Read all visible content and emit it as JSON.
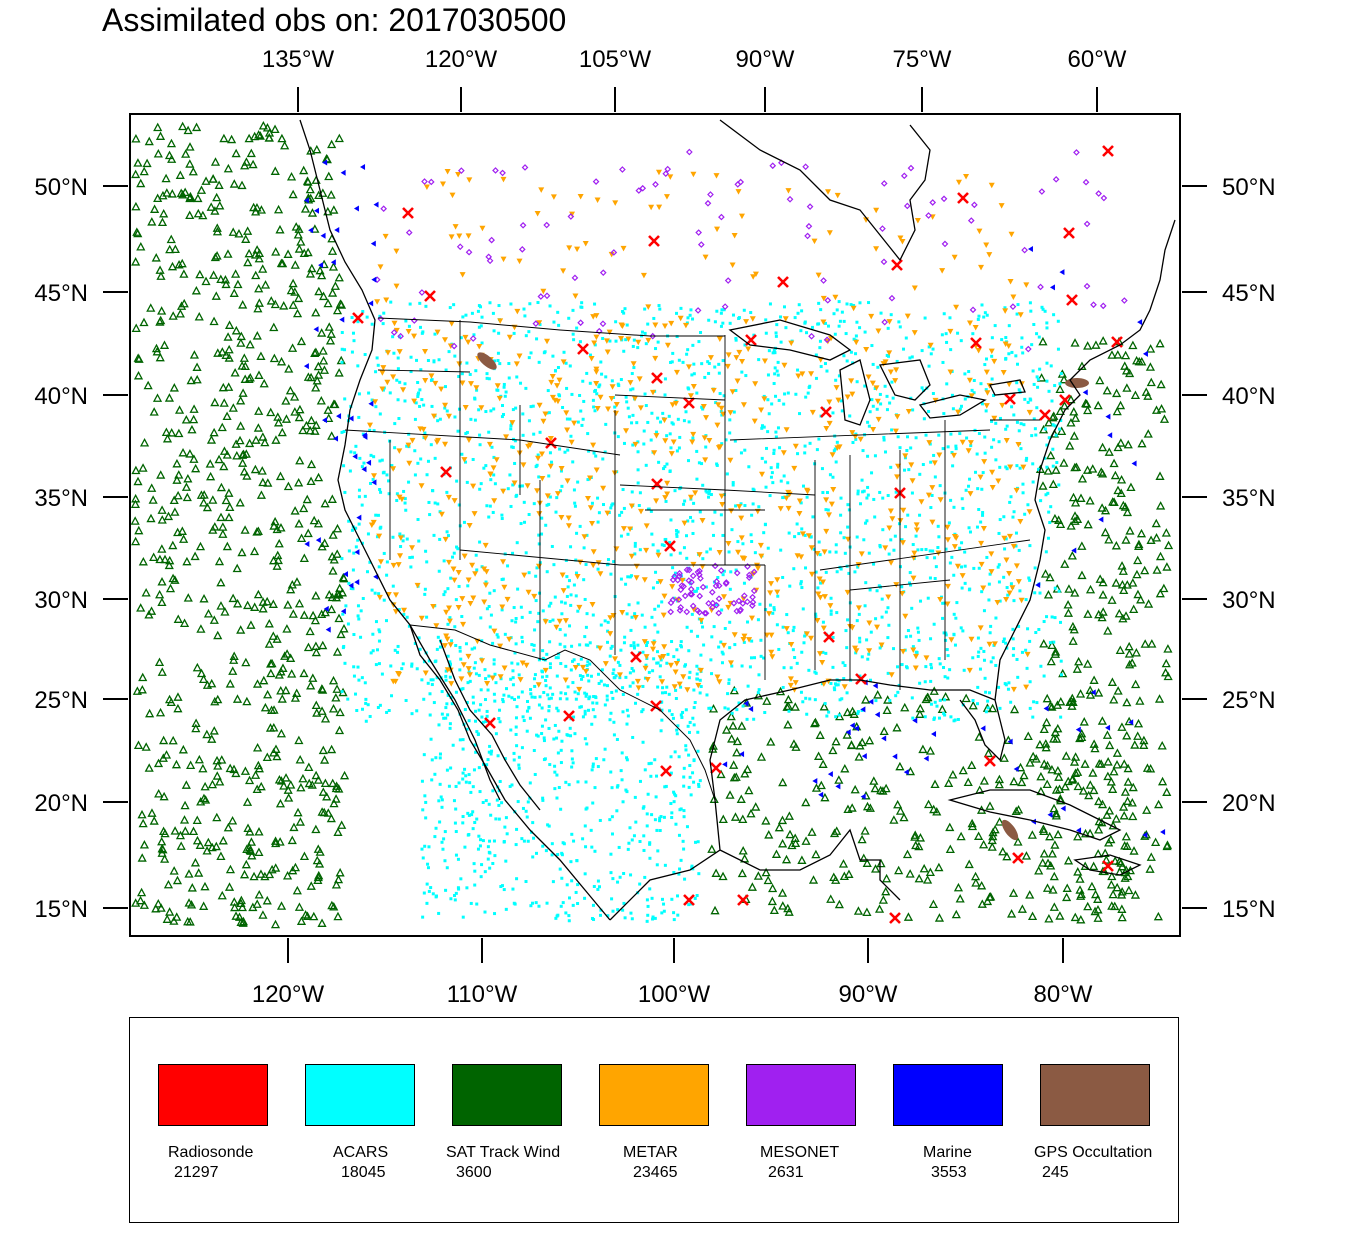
{
  "title": "Assimilated obs on: 2017030500",
  "axes": {
    "top_lon_labels": [
      "135°W",
      "120°W",
      "105°W",
      "90°W",
      "75°W",
      "60°W"
    ],
    "bottom_lon_labels": [
      "120°W",
      "110°W",
      "100°W",
      "90°W",
      "80°W"
    ],
    "left_lat_labels": [
      "50°N",
      "45°N",
      "40°N",
      "35°N",
      "30°N",
      "25°N",
      "20°N",
      "15°N"
    ],
    "right_lat_labels": [
      "50°N",
      "45°N",
      "40°N",
      "35°N",
      "30°N",
      "25°N",
      "20°N",
      "15°N"
    ]
  },
  "legend": [
    {
      "name": "Radiosonde",
      "count": "21297",
      "color": "#ff0000"
    },
    {
      "name": "ACARS",
      "count": "18045",
      "color": "#00ffff"
    },
    {
      "name": "SAT Track Wind",
      "count": "3600",
      "color": "#006400"
    },
    {
      "name": "METAR",
      "count": "23465",
      "color": "#ffa500"
    },
    {
      "name": "MESONET",
      "count": "2631",
      "color": "#a020f0"
    },
    {
      "name": "Marine",
      "count": "3553",
      "color": "#0000ff"
    },
    {
      "name": "GPS Occultation",
      "count": "245",
      "color": "#8b5a43"
    }
  ],
  "extent": {
    "lon_min": -128,
    "lon_max": -74,
    "lat_min": 14,
    "lat_max": 54
  }
}
